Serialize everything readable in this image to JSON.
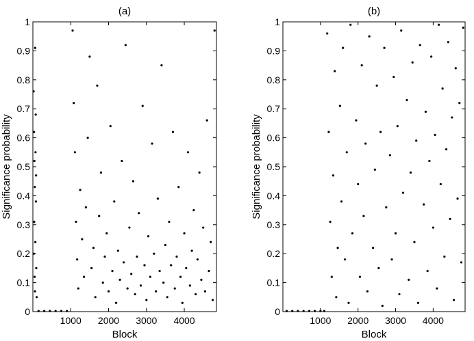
{
  "chart_data": [
    {
      "type": "scatter",
      "title": "(a)",
      "xlabel": "Block",
      "ylabel": "Significance probability",
      "xlim": [
        0,
        4850
      ],
      "ylim": [
        0,
        1
      ],
      "xticks": [
        1000,
        2000,
        3000,
        4000
      ],
      "yticks": [
        0,
        0.1,
        0.2,
        0.3,
        0.4,
        0.5,
        0.6,
        0.7,
        0.8,
        0.9,
        1
      ],
      "ytick_labels": [
        "0",
        "0.1",
        "0.2",
        "0.3",
        "0.4",
        "0.5",
        "0.6",
        "0.7",
        "0.8",
        "0.9",
        "1"
      ],
      "grid": false,
      "marker_color": "#000000",
      "series": [
        {
          "values": [
            [
              20,
              0.76
            ],
            [
              30,
              0.62
            ],
            [
              40,
              0.52
            ],
            [
              50,
              0.43
            ],
            [
              35,
              0.31
            ],
            [
              25,
              0.2
            ],
            [
              45,
              0.12
            ],
            [
              55,
              0.07
            ],
            [
              60,
              0.91
            ],
            [
              70,
              0.55
            ],
            [
              80,
              0.38
            ],
            [
              65,
              0.24
            ],
            [
              90,
              0.15
            ],
            [
              100,
              0.05
            ],
            [
              75,
              0.68
            ],
            [
              85,
              0.47
            ],
            [
              150,
              0.002
            ],
            [
              300,
              0.002
            ],
            [
              450,
              0.002
            ],
            [
              600,
              0.002
            ],
            [
              750,
              0.002
            ],
            [
              900,
              0.002
            ],
            [
              1050,
              0.97
            ],
            [
              1080,
              0.72
            ],
            [
              1110,
              0.55
            ],
            [
              1140,
              0.31
            ],
            [
              1170,
              0.18
            ],
            [
              1200,
              0.08
            ],
            [
              1250,
              0.42
            ],
            [
              1300,
              0.25
            ],
            [
              1350,
              0.12
            ],
            [
              1400,
              0.36
            ],
            [
              1450,
              0.6
            ],
            [
              1500,
              0.88
            ],
            [
              1550,
              0.15
            ],
            [
              1600,
              0.22
            ],
            [
              1650,
              0.05
            ],
            [
              1700,
              0.78
            ],
            [
              1750,
              0.33
            ],
            [
              1800,
              0.48
            ],
            [
              1850,
              0.1
            ],
            [
              1900,
              0.19
            ],
            [
              1950,
              0.27
            ],
            [
              2000,
              0.07
            ],
            [
              2050,
              0.64
            ],
            [
              2100,
              0.14
            ],
            [
              2150,
              0.38
            ],
            [
              2200,
              0.03
            ],
            [
              2250,
              0.21
            ],
            [
              2300,
              0.11
            ],
            [
              2350,
              0.52
            ],
            [
              2400,
              0.17
            ],
            [
              2450,
              0.92
            ],
            [
              2500,
              0.08
            ],
            [
              2550,
              0.29
            ],
            [
              2600,
              0.13
            ],
            [
              2650,
              0.45
            ],
            [
              2700,
              0.06
            ],
            [
              2750,
              0.19
            ],
            [
              2800,
              0.34
            ],
            [
              2850,
              0.09
            ],
            [
              2900,
              0.71
            ],
            [
              2950,
              0.16
            ],
            [
              3000,
              0.04
            ],
            [
              3050,
              0.26
            ],
            [
              3100,
              0.12
            ],
            [
              3150,
              0.58
            ],
            [
              3200,
              0.2
            ],
            [
              3250,
              0.07
            ],
            [
              3300,
              0.39
            ],
            [
              3350,
              0.14
            ],
            [
              3400,
              0.85
            ],
            [
              3450,
              0.1
            ],
            [
              3500,
              0.23
            ],
            [
              3550,
              0.05
            ],
            [
              3600,
              0.31
            ],
            [
              3650,
              0.16
            ],
            [
              3700,
              0.62
            ],
            [
              3750,
              0.08
            ],
            [
              3800,
              0.19
            ],
            [
              3850,
              0.43
            ],
            [
              3900,
              0.12
            ],
            [
              3950,
              0.03
            ],
            [
              4000,
              0.27
            ],
            [
              4050,
              0.15
            ],
            [
              4100,
              0.55
            ],
            [
              4150,
              0.09
            ],
            [
              4200,
              0.21
            ],
            [
              4250,
              0.35
            ],
            [
              4300,
              0.06
            ],
            [
              4350,
              0.18
            ],
            [
              4400,
              0.48
            ],
            [
              4450,
              0.11
            ],
            [
              4500,
              0.29
            ],
            [
              4550,
              0.07
            ],
            [
              4600,
              0.66
            ],
            [
              4650,
              0.14
            ],
            [
              4700,
              0.24
            ],
            [
              4750,
              0.04
            ],
            [
              4800,
              0.97
            ]
          ]
        }
      ]
    },
    {
      "type": "scatter",
      "title": "(b)",
      "xlabel": "Block",
      "ylabel": "Significance probability",
      "xlim": [
        0,
        4850
      ],
      "ylim": [
        0,
        1
      ],
      "xticks": [
        1000,
        2000,
        3000,
        4000
      ],
      "yticks": [
        0,
        0.1,
        0.2,
        0.3,
        0.4,
        0.5,
        0.6,
        0.7,
        0.8,
        0.9,
        1
      ],
      "ytick_labels": [
        "0",
        "0.1",
        "0.2",
        "0.3",
        "0.4",
        "0.5",
        "0.6",
        "0.7",
        "0.8",
        "0.9",
        "1"
      ],
      "grid": false,
      "marker_color": "#000000",
      "series": [
        {
          "values": [
            [
              100,
              0.002
            ],
            [
              250,
              0.002
            ],
            [
              400,
              0.002
            ],
            [
              550,
              0.002
            ],
            [
              700,
              0.002
            ],
            [
              850,
              0.002
            ],
            [
              1000,
              0.002
            ],
            [
              1100,
              0.002
            ],
            [
              1180,
              0.96
            ],
            [
              1220,
              0.62
            ],
            [
              1260,
              0.31
            ],
            [
              1300,
              0.12
            ],
            [
              1340,
              0.47
            ],
            [
              1380,
              0.83
            ],
            [
              1420,
              0.05
            ],
            [
              1460,
              0.22
            ],
            [
              1520,
              0.71
            ],
            [
              1560,
              0.38
            ],
            [
              1600,
              0.91
            ],
            [
              1650,
              0.18
            ],
            [
              1700,
              0.55
            ],
            [
              1750,
              0.03
            ],
            [
              1800,
              0.99
            ],
            [
              1850,
              0.27
            ],
            [
              1950,
              0.66
            ],
            [
              2000,
              0.44
            ],
            [
              2050,
              0.12
            ],
            [
              2100,
              0.85
            ],
            [
              2150,
              0.33
            ],
            [
              2200,
              0.58
            ],
            [
              2250,
              0.07
            ],
            [
              2300,
              0.95
            ],
            [
              2400,
              0.22
            ],
            [
              2450,
              0.49
            ],
            [
              2500,
              0.78
            ],
            [
              2550,
              0.15
            ],
            [
              2600,
              0.62
            ],
            [
              2650,
              0.02
            ],
            [
              2700,
              0.91
            ],
            [
              2750,
              0.36
            ],
            [
              2850,
              0.54
            ],
            [
              2900,
              0.18
            ],
            [
              2950,
              0.81
            ],
            [
              3000,
              0.27
            ],
            [
              3050,
              0.64
            ],
            [
              3100,
              0.06
            ],
            [
              3150,
              0.97
            ],
            [
              3200,
              0.41
            ],
            [
              3300,
              0.73
            ],
            [
              3350,
              0.11
            ],
            [
              3400,
              0.48
            ],
            [
              3450,
              0.86
            ],
            [
              3500,
              0.24
            ],
            [
              3550,
              0.59
            ],
            [
              3600,
              0.03
            ],
            [
              3650,
              0.92
            ],
            [
              3750,
              0.37
            ],
            [
              3800,
              0.69
            ],
            [
              3850,
              0.14
            ],
            [
              3900,
              0.52
            ],
            [
              3950,
              0.88
            ],
            [
              4000,
              0.29
            ],
            [
              4050,
              0.61
            ],
            [
              4100,
              0.08
            ],
            [
              4150,
              0.99
            ],
            [
              4200,
              0.44
            ],
            [
              4250,
              0.77
            ],
            [
              4300,
              0.19
            ],
            [
              4350,
              0.56
            ],
            [
              4400,
              0.93
            ],
            [
              4450,
              0.32
            ],
            [
              4500,
              0.67
            ],
            [
              4550,
              0.04
            ],
            [
              4600,
              0.84
            ],
            [
              4650,
              0.39
            ],
            [
              4700,
              0.72
            ],
            [
              4750,
              0.17
            ],
            [
              4800,
              0.98
            ]
          ]
        }
      ]
    }
  ]
}
